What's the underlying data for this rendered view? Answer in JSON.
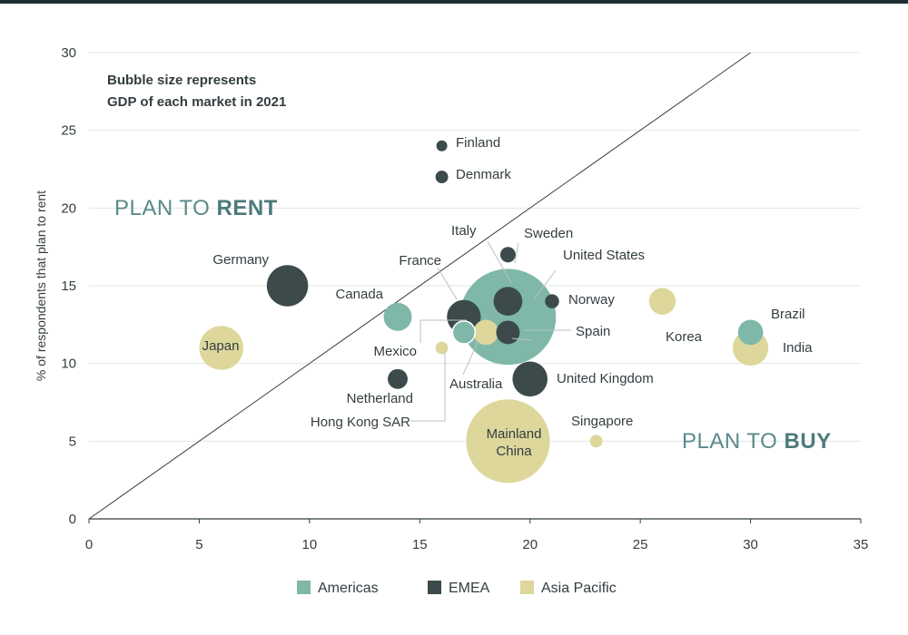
{
  "colors": {
    "Americas": "#7fb8a8",
    "EMEA": "#3c4a4c",
    "Asia Pacific": "#ddd79c"
  },
  "chart_data": {
    "type": "scatter",
    "ylabel": "% of respondents that plan to rent",
    "xlabel": "",
    "xlim": [
      0,
      35
    ],
    "ylim": [
      0,
      30
    ],
    "xticks": [
      0,
      5,
      10,
      15,
      20,
      25,
      30,
      35
    ],
    "yticks": [
      0,
      5,
      10,
      15,
      20,
      25,
      30
    ],
    "grid": "horizontal",
    "diagonal_line": true,
    "note_lines": [
      "Bubble size represents",
      "GDP of each market in 2021"
    ],
    "regions": {
      "rent": {
        "prefix": "PLAN TO ",
        "strong": "RENT"
      },
      "buy": {
        "prefix": "PLAN TO ",
        "strong": "BUY"
      }
    },
    "legend": [
      "Americas",
      "EMEA",
      "Asia Pacific"
    ],
    "legend_position": "bottom",
    "points": [
      {
        "label": "United States",
        "group": "Americas",
        "x": 19,
        "y": 13,
        "size": 23.3
      },
      {
        "label": "Mainland China",
        "group": "Asia Pacific",
        "x": 19,
        "y": 5,
        "size": 17.7
      },
      {
        "label": "Japan",
        "group": "Asia Pacific",
        "x": 6,
        "y": 11,
        "size": 4.9
      },
      {
        "label": "Germany",
        "group": "EMEA",
        "x": 9,
        "y": 15,
        "size": 4.3
      },
      {
        "label": "India",
        "group": "Asia Pacific",
        "x": 30,
        "y": 11,
        "size": 3.2
      },
      {
        "label": "United Kingdom",
        "group": "EMEA",
        "x": 20,
        "y": 9,
        "size": 3.1
      },
      {
        "label": "France",
        "group": "EMEA",
        "x": 17,
        "y": 13,
        "size": 2.9
      },
      {
        "label": "Italy",
        "group": "EMEA",
        "x": 19,
        "y": 14,
        "size": 2.1
      },
      {
        "label": "Canada",
        "group": "Americas",
        "x": 14,
        "y": 13,
        "size": 2.0
      },
      {
        "label": "Korea",
        "group": "Asia Pacific",
        "x": 26,
        "y": 14,
        "size": 1.8
      },
      {
        "label": "Brazil",
        "group": "Americas",
        "x": 30,
        "y": 12,
        "size": 1.6
      },
      {
        "label": "Australia",
        "group": "Asia Pacific",
        "x": 18,
        "y": 12,
        "size": 1.6
      },
      {
        "label": "Spain",
        "group": "EMEA",
        "x": 19,
        "y": 12,
        "size": 1.4
      },
      {
        "label": "Mexico",
        "group": "Americas",
        "x": 17,
        "y": 12,
        "size": 1.3
      },
      {
        "label": "Netherland",
        "group": "EMEA",
        "x": 14,
        "y": 9,
        "size": 1.0
      },
      {
        "label": "Sweden",
        "group": "EMEA",
        "x": 19,
        "y": 17,
        "size": 0.6
      },
      {
        "label": "Norway",
        "group": "EMEA",
        "x": 21,
        "y": 14,
        "size": 0.5
      },
      {
        "label": "Singapore",
        "group": "Asia Pacific",
        "x": 23,
        "y": 5,
        "size": 0.4
      },
      {
        "label": "Hong Kong SAR",
        "group": "Asia Pacific",
        "x": 16,
        "y": 11,
        "size": 0.4
      },
      {
        "label": "Finland",
        "group": "EMEA",
        "x": 16,
        "y": 24,
        "size": 0.3
      },
      {
        "label": "Denmark",
        "group": "EMEA",
        "x": 16,
        "y": 22,
        "size": 0.4
      }
    ]
  }
}
